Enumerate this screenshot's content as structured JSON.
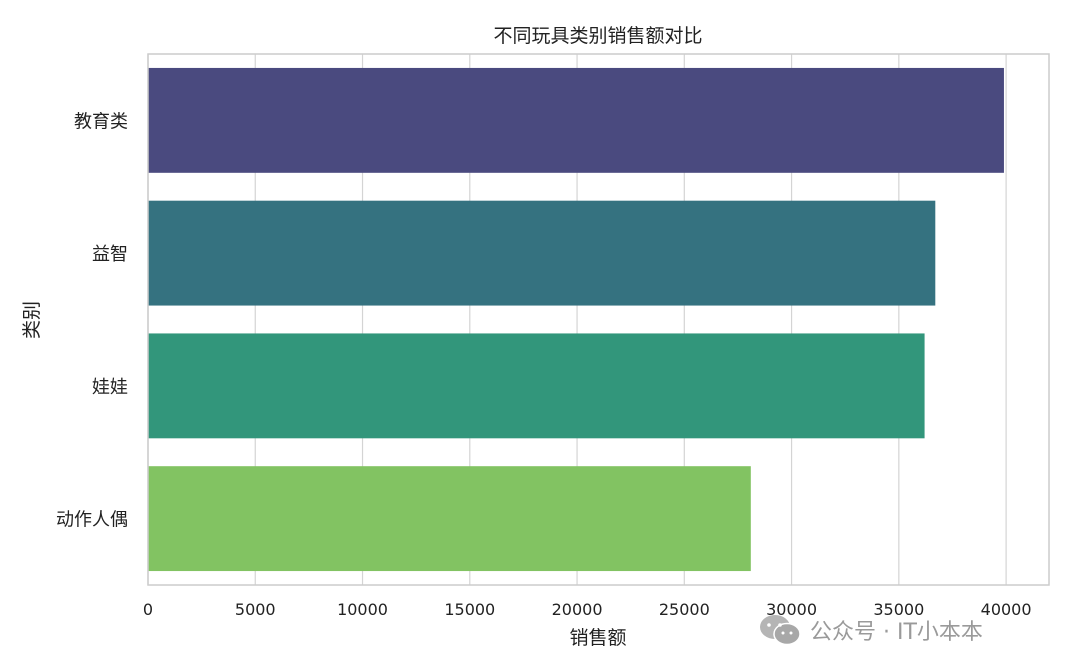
{
  "chart_data": {
    "type": "bar",
    "orientation": "horizontal",
    "title": "不同玩具类别销售额对比",
    "xlabel": "销售额",
    "ylabel": "类别",
    "categories": [
      "教育类",
      "益智",
      "娃娃",
      "动作人偶"
    ],
    "values": [
      39900,
      36700,
      36200,
      28100
    ],
    "colors": [
      "#4a4a7f",
      "#357280",
      "#32967b",
      "#82c362"
    ],
    "xlim": [
      0,
      42000
    ],
    "xticks": [
      0,
      5000,
      10000,
      15000,
      20000,
      25000,
      30000,
      35000,
      40000
    ],
    "grid": true
  },
  "watermark": {
    "icon": "wechat-icon",
    "text": "公众号 · IT小本本"
  }
}
